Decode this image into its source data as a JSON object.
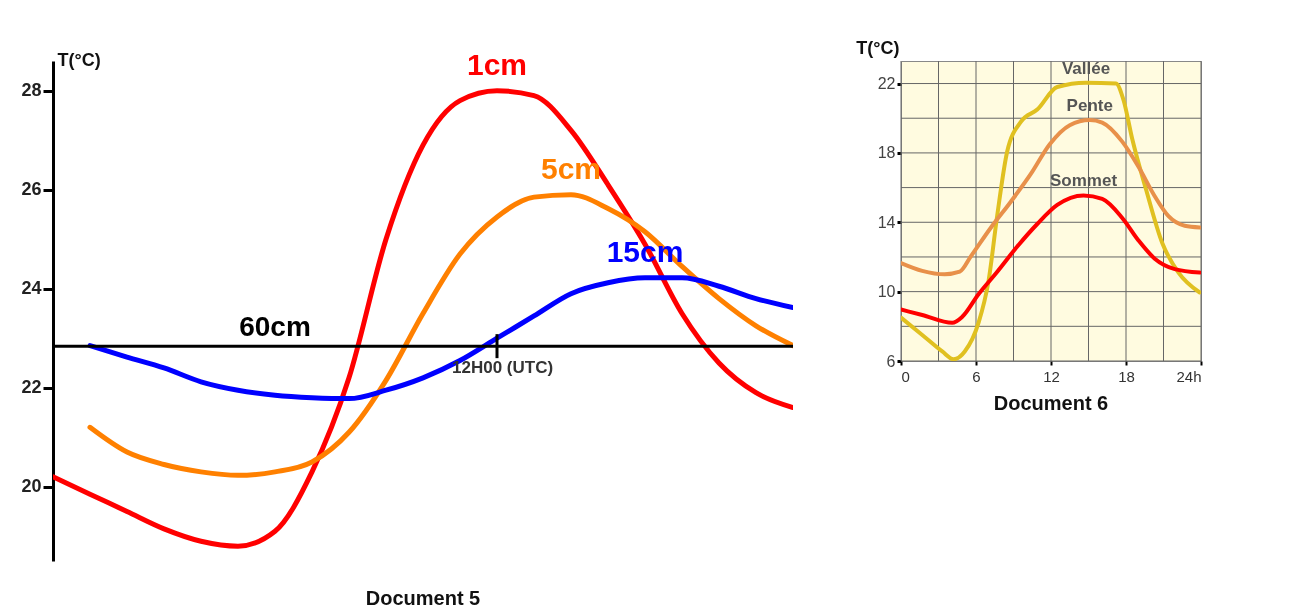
{
  "chart_data": [
    {
      "type": "line",
      "title": "Document 5",
      "ylabel": "T(°C)",
      "annotations": [
        "12H00 (UTC)"
      ],
      "ylim": [
        18.5,
        28.6
      ],
      "yticks": [
        20,
        22,
        24,
        26,
        28
      ],
      "categories": [
        null,
        null,
        null,
        null,
        null,
        null,
        null,
        null,
        null,
        null,
        null,
        null,
        null,
        null,
        null,
        null,
        null,
        null,
        null,
        null,
        null
      ],
      "ref_lines": [
        {
          "axis": "y",
          "value": 22.84,
          "label": "60cm",
          "color": "#000000"
        }
      ],
      "series": [
        {
          "name": "1cm",
          "color": "#ff0000",
          "values": [
            20.2,
            19.85,
            19.5,
            19.15,
            18.9,
            18.8,
            19.1,
            20.3,
            22.2,
            25.0,
            26.9,
            27.8,
            28.0,
            27.9,
            27.2,
            26.1,
            24.9,
            23.5,
            22.5,
            21.9,
            21.6
          ]
        },
        {
          "name": "5cm",
          "color": "#ff8000",
          "values": [
            null,
            21.2,
            20.7,
            20.45,
            20.3,
            20.23,
            20.3,
            20.5,
            21.1,
            22.15,
            23.5,
            24.7,
            25.45,
            25.85,
            25.9,
            25.62,
            25.15,
            24.45,
            23.8,
            23.25,
            22.85
          ]
        },
        {
          "name": "15cm",
          "color": "#0000ff",
          "values": [
            null,
            22.85,
            22.62,
            22.4,
            22.12,
            21.95,
            21.85,
            21.8,
            21.78,
            21.95,
            22.2,
            22.55,
            23.0,
            23.45,
            23.9,
            24.12,
            24.22,
            24.22,
            24.05,
            23.8,
            23.62
          ]
        }
      ]
    },
    {
      "type": "line",
      "title": "Document 6",
      "ylabel": "T(°C)",
      "grid": true,
      "xlim": [
        0,
        24
      ],
      "xticks": [
        0,
        {
          "value": 3,
          "label": null
        },
        6,
        {
          "value": 9,
          "label": null
        },
        12,
        {
          "value": 15,
          "label": null
        },
        18,
        {
          "value": 21,
          "label": null
        },
        {
          "value": 24,
          "label": "24h"
        }
      ],
      "ylim": [
        6,
        23.3
      ],
      "yticks": [
        6,
        {
          "value": 8,
          "label": null
        },
        10,
        {
          "value": 12,
          "label": null
        },
        14,
        {
          "value": 16,
          "label": null
        },
        18,
        {
          "value": 20,
          "label": null
        },
        22
      ],
      "series": [
        {
          "name": "Vallée",
          "color": "#e0c020",
          "x": [
            0,
            1.7,
            3.3,
            4.2,
            5.1,
            6.2,
            7.0,
            7.7,
            8.5,
            9.6,
            10.9,
            12.5,
            14.8,
            17.2,
            17.8,
            18.5,
            19.6,
            20.9,
            22.2,
            23.9
          ],
          "values": [
            8.5,
            7.5,
            6.55,
            6.1,
            6.55,
            8.2,
            10.6,
            14.4,
            18.1,
            19.8,
            20.5,
            21.8,
            22.05,
            22.0,
            21.05,
            18.8,
            15.9,
            12.8,
            11.1,
            9.95
          ]
        },
        {
          "name": "Pente",
          "color": "#e8904a",
          "x": [
            0,
            1.7,
            3.5,
            4.7,
            5.6,
            7.2,
            8.8,
            10.4,
            11.9,
            13.5,
            15.1,
            16.1,
            17.7,
            19.0,
            20.3,
            21.4,
            22.7,
            23.9
          ],
          "values": [
            11.65,
            11.2,
            11.0,
            11.15,
            12.05,
            13.7,
            15.2,
            16.8,
            18.5,
            19.6,
            19.9,
            19.75,
            18.65,
            17.2,
            15.5,
            14.35,
            13.8,
            13.7
          ]
        },
        {
          "name": "Sommet",
          "color": "#ff0000",
          "x": [
            0,
            1.7,
            4.1,
            4.9,
            6.2,
            7.7,
            9.3,
            10.9,
            12.5,
            14.6,
            16.1,
            17.7,
            19.0,
            20.3,
            21.9,
            23.9
          ],
          "values": [
            8.97,
            8.65,
            8.2,
            8.55,
            9.85,
            11.15,
            12.6,
            13.9,
            15.0,
            15.55,
            15.35,
            14.25,
            12.95,
            11.9,
            11.3,
            11.1
          ]
        }
      ]
    }
  ]
}
